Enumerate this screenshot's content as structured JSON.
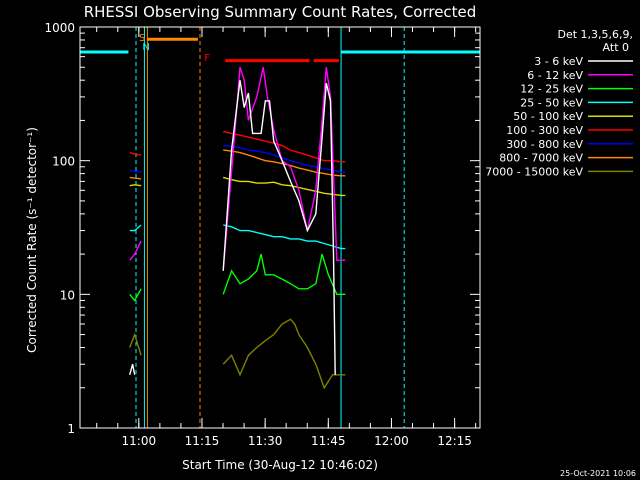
{
  "chart_data": {
    "type": "line",
    "title": "RHESSI Observing Summary Count Rates, Corrected",
    "xlabel": "Start Time (30-Aug-12 10:46:02)",
    "ylabel": "Corrected Count Rate (s⁻¹ detector⁻¹)",
    "yscale": "log",
    "ylim": [
      1,
      1000
    ],
    "xlim_minutes_after_start": [
      0,
      95
    ],
    "x_ticks": [
      "11:00",
      "11:15",
      "11:30",
      "11:45",
      "12:00",
      "12:15"
    ],
    "y_ticks": [
      "1",
      "10",
      "100",
      "1000"
    ],
    "legend_header": [
      "Det 1,3,5,6,9,",
      "Att 0"
    ],
    "footer_date": "25-Oct-2021 10:06",
    "flag_labels": {
      "saa": "S",
      "night": "N",
      "flare": "F"
    },
    "series": [
      {
        "name": "3 - 6 keV",
        "color": "#ffffff",
        "points": [
          [
            11.8,
            2.5
          ],
          [
            12.5,
            3
          ],
          [
            13,
            2.5
          ],
          [
            34,
            15
          ],
          [
            36,
            120
          ],
          [
            38,
            400
          ],
          [
            39,
            250
          ],
          [
            40,
            320
          ],
          [
            41,
            160
          ],
          [
            43,
            160
          ],
          [
            44,
            280
          ],
          [
            45,
            280
          ],
          [
            46,
            140
          ],
          [
            48,
            100
          ],
          [
            50,
            70
          ],
          [
            52,
            50
          ],
          [
            54,
            30
          ],
          [
            56,
            40
          ],
          [
            57.5,
            150
          ],
          [
            58.5,
            380
          ],
          [
            59.5,
            280
          ],
          [
            60.2,
            20
          ],
          [
            60.6,
            2.5
          ]
        ]
      },
      {
        "name": "6 - 12 keV",
        "color": "#ff00ff",
        "points": [
          [
            11.8,
            18
          ],
          [
            13,
            20
          ],
          [
            14.5,
            25
          ],
          [
            34,
            15
          ],
          [
            35,
            35
          ],
          [
            37,
            200
          ],
          [
            38,
            500
          ],
          [
            39,
            400
          ],
          [
            40,
            200
          ],
          [
            42,
            300
          ],
          [
            43.5,
            500
          ],
          [
            44.5,
            300
          ],
          [
            46,
            170
          ],
          [
            48,
            100
          ],
          [
            50,
            90
          ],
          [
            52,
            60
          ],
          [
            54,
            30
          ],
          [
            56,
            60
          ],
          [
            57.5,
            200
          ],
          [
            58.5,
            500
          ],
          [
            59.5,
            300
          ],
          [
            61,
            18
          ],
          [
            63,
            18
          ]
        ]
      },
      {
        "name": "12 - 25 keV",
        "color": "#00ff00",
        "points": [
          [
            11.8,
            10
          ],
          [
            13,
            9
          ],
          [
            14.5,
            11
          ],
          [
            34,
            10
          ],
          [
            36,
            15
          ],
          [
            38,
            12
          ],
          [
            40,
            13
          ],
          [
            42,
            15
          ],
          [
            43,
            20
          ],
          [
            44,
            14
          ],
          [
            46,
            14
          ],
          [
            48,
            13
          ],
          [
            50,
            12
          ],
          [
            52,
            11
          ],
          [
            54,
            11
          ],
          [
            56,
            12
          ],
          [
            57.5,
            20
          ],
          [
            59,
            14
          ],
          [
            61,
            10
          ],
          [
            63,
            10
          ]
        ]
      },
      {
        "name": "25 - 50 keV",
        "color": "#00ffff",
        "points": [
          [
            11.8,
            30
          ],
          [
            13,
            30
          ],
          [
            14.5,
            33
          ],
          [
            34,
            33
          ],
          [
            36,
            32
          ],
          [
            38,
            30
          ],
          [
            40,
            30
          ],
          [
            42,
            29
          ],
          [
            44,
            28
          ],
          [
            46,
            27
          ],
          [
            48,
            27
          ],
          [
            50,
            26
          ],
          [
            52,
            26
          ],
          [
            54,
            25
          ],
          [
            56,
            25
          ],
          [
            58,
            24
          ],
          [
            60,
            23
          ],
          [
            62,
            22
          ],
          [
            63,
            22
          ]
        ]
      },
      {
        "name": "50 - 100 keV",
        "color": "#dddd00",
        "points": [
          [
            11.8,
            65
          ],
          [
            13,
            66
          ],
          [
            14.5,
            65
          ],
          [
            34,
            75
          ],
          [
            36,
            72
          ],
          [
            38,
            70
          ],
          [
            40,
            70
          ],
          [
            42,
            68
          ],
          [
            44,
            68
          ],
          [
            46,
            69
          ],
          [
            48,
            66
          ],
          [
            50,
            65
          ],
          [
            52,
            63
          ],
          [
            54,
            61
          ],
          [
            56,
            59
          ],
          [
            58,
            57
          ],
          [
            60,
            56
          ],
          [
            62,
            55
          ],
          [
            63,
            55
          ]
        ]
      },
      {
        "name": "100 - 300 keV",
        "color": "#ff0000",
        "points": [
          [
            11.8,
            115
          ],
          [
            13,
            112
          ],
          [
            14.5,
            110
          ],
          [
            34,
            165
          ],
          [
            36,
            160
          ],
          [
            38,
            155
          ],
          [
            40,
            150
          ],
          [
            42,
            145
          ],
          [
            44,
            140
          ],
          [
            46,
            135
          ],
          [
            48,
            130
          ],
          [
            50,
            120
          ],
          [
            52,
            115
          ],
          [
            54,
            110
          ],
          [
            56,
            105
          ],
          [
            58,
            100
          ],
          [
            60,
            100
          ],
          [
            62,
            98
          ],
          [
            63,
            98
          ]
        ]
      },
      {
        "name": "300 - 800 keV",
        "color": "#0000ff",
        "points": [
          [
            11.8,
            85
          ],
          [
            13,
            83
          ],
          [
            14.5,
            82
          ],
          [
            34,
            130
          ],
          [
            36,
            128
          ],
          [
            38,
            125
          ],
          [
            40,
            120
          ],
          [
            42,
            118
          ],
          [
            44,
            115
          ],
          [
            46,
            110
          ],
          [
            48,
            105
          ],
          [
            50,
            100
          ],
          [
            52,
            96
          ],
          [
            54,
            92
          ],
          [
            56,
            90
          ],
          [
            58,
            87
          ],
          [
            60,
            85
          ],
          [
            62,
            82
          ],
          [
            63,
            82
          ]
        ]
      },
      {
        "name": "800 - 7000 keV",
        "color": "#ff8800",
        "points": [
          [
            11.8,
            75
          ],
          [
            13,
            74
          ],
          [
            14.5,
            73
          ],
          [
            34,
            120
          ],
          [
            36,
            118
          ],
          [
            38,
            115
          ],
          [
            40,
            110
          ],
          [
            42,
            105
          ],
          [
            44,
            100
          ],
          [
            46,
            98
          ],
          [
            48,
            95
          ],
          [
            50,
            92
          ],
          [
            52,
            88
          ],
          [
            54,
            85
          ],
          [
            56,
            82
          ],
          [
            58,
            80
          ],
          [
            60,
            78
          ],
          [
            62,
            77
          ],
          [
            63,
            77
          ]
        ]
      },
      {
        "name": "7000 - 15000 keV",
        "color": "#808000",
        "points": [
          [
            11.8,
            4
          ],
          [
            13,
            5
          ],
          [
            14.5,
            3.5
          ],
          [
            34,
            3
          ],
          [
            36,
            3.5
          ],
          [
            38,
            2.5
          ],
          [
            40,
            3.5
          ],
          [
            42,
            4
          ],
          [
            44,
            4.5
          ],
          [
            46,
            5
          ],
          [
            48,
            6
          ],
          [
            50,
            6.5
          ],
          [
            51,
            6
          ],
          [
            52,
            5
          ],
          [
            54,
            4
          ],
          [
            56,
            3
          ],
          [
            58,
            2
          ],
          [
            60,
            2.5
          ],
          [
            62,
            2.5
          ],
          [
            63,
            2.5
          ]
        ]
      }
    ]
  },
  "colors": {
    "background": "#000000",
    "axis": "#ffffff",
    "saa_flag": "#ff8800",
    "night_flag": "#00ffff",
    "flare_flag": "#ff0000"
  }
}
